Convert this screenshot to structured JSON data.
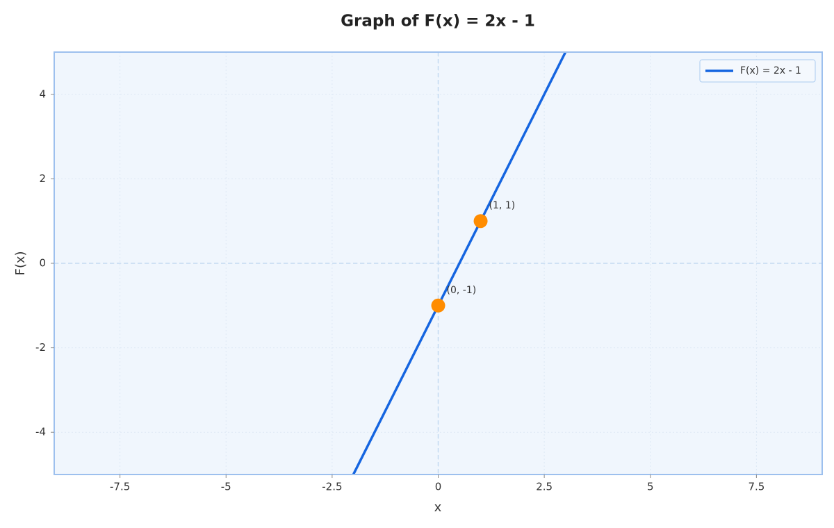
{
  "chart_data": {
    "type": "line",
    "title": "Graph of F(x) = 2x - 1",
    "xlabel": "x",
    "ylabel": "F(x)",
    "xlim": [
      -9.05,
      9.05
    ],
    "ylim": [
      -5,
      5
    ],
    "xticks": [
      -7.5,
      -5,
      -2.5,
      0,
      2.5,
      5,
      7.5
    ],
    "yticks": [
      -4,
      -2,
      0,
      2,
      4
    ],
    "grid": true,
    "legend": "upper right",
    "series": [
      {
        "name": "F(x) = 2x - 1",
        "color": "#1565e0",
        "x": [
          -2,
          3
        ],
        "values": [
          -5,
          5
        ]
      }
    ],
    "points": {
      "color": "#ff8c00",
      "x": [
        0,
        1
      ],
      "values": [
        -1,
        1
      ],
      "labels": [
        "(0, -1)",
        "(1, 1)"
      ]
    }
  }
}
